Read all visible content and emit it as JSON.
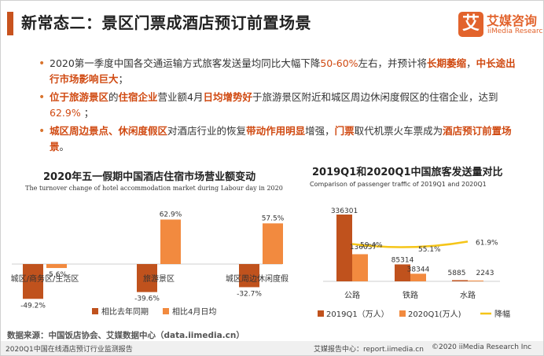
{
  "header": {
    "title": "新常态二：景区门票成酒店预订前置场景",
    "brand_cn": "艾媒咨询",
    "brand_en": "iiMedia Research",
    "brand_glyph": "艾",
    "accent_color": "#c8531e"
  },
  "bullets": {
    "b1": {
      "t1": "2020第一季度中国各交通运输方式旅客发送量均同比大幅下降",
      "t2": "50-60%",
      "t3": "左右，并预计将",
      "t4": "长期萎缩",
      "t5": "，",
      "t6": "中长途出行市场影响巨大",
      "t7": "；"
    },
    "b2": {
      "t1": "位于旅游景区",
      "t2": "的",
      "t3": "住宿企业",
      "t4": "营业额4月",
      "t5": "日均增势好",
      "t6": "于旅游景区附近和城区周边休闲度假区的住宿企业，达到",
      "t7": "62.9%",
      "t8": " ；"
    },
    "b3": {
      "t1": "城区周边景点",
      "t2": "、",
      "t3": "休闲度假区",
      "t4": "对酒店行业的恢复",
      "t5": "带动作用明显",
      "t6": "增强，",
      "t7": "门票",
      "t8": "取代机票火车票成为",
      "t9": "酒店预订前置场景",
      "t10": "。"
    }
  },
  "chart_data": [
    {
      "type": "bar",
      "title": "2020年五一假期中国酒店住宿市场营业额变动",
      "subtitle": "The turnover change of hotel accommodation market during Labour day in 2020",
      "categories": [
        "城区/商务区/生活区",
        "旅游景区",
        "城区周边休闲度假区"
      ],
      "series": [
        {
          "name": "相比去年同期",
          "values": [
            -49.2,
            -39.6,
            -32.7
          ],
          "labels": [
            "-49.2%",
            "-39.6%",
            "-32.7%"
          ],
          "color": "#c0521d"
        },
        {
          "name": "相比4月日均",
          "values": [
            -5.6,
            62.9,
            57.5
          ],
          "labels": [
            "-5.6%",
            "62.9%",
            "57.5%"
          ],
          "color": "#f28a3f"
        }
      ],
      "ylim": [
        -50,
        65
      ],
      "legend": "bottom"
    },
    {
      "type": "bar",
      "title": "2019Q1和2020Q1中国旅客发送量对比",
      "subtitle": "Comparison of passenger traffic of 2019Q1 and 2020Q1",
      "categories": [
        "公路",
        "铁路",
        "水路"
      ],
      "series": [
        {
          "name": "2019Q1（万人）",
          "values": [
            336301,
            85314,
            5885
          ],
          "labels": [
            "336301",
            "85314",
            "5885"
          ],
          "color": "#c0521d"
        },
        {
          "name": "2020Q1(万人)",
          "values": [
            136637,
            38344,
            2243
          ],
          "labels": [
            "136637",
            "38344",
            "2243"
          ],
          "color": "#f28a3f"
        },
        {
          "name": "降幅",
          "type": "line",
          "values": [
            59.4,
            55.1,
            61.9
          ],
          "labels": [
            "59.4%",
            "55.1%",
            "61.9%"
          ],
          "color": "#f5c518"
        }
      ],
      "ylim": [
        0,
        340000
      ],
      "legend": "bottom"
    }
  ],
  "footer": {
    "source": "数据来源：中国饭店协会、艾媒数据中心（data.iimedia.cn）",
    "report": "2020Q1中国在线酒店预订行业监测报告",
    "center": "艾媒报告中心：report.iimedia.cn",
    "copyright": "©2020  iiMedia Research  Inc"
  }
}
